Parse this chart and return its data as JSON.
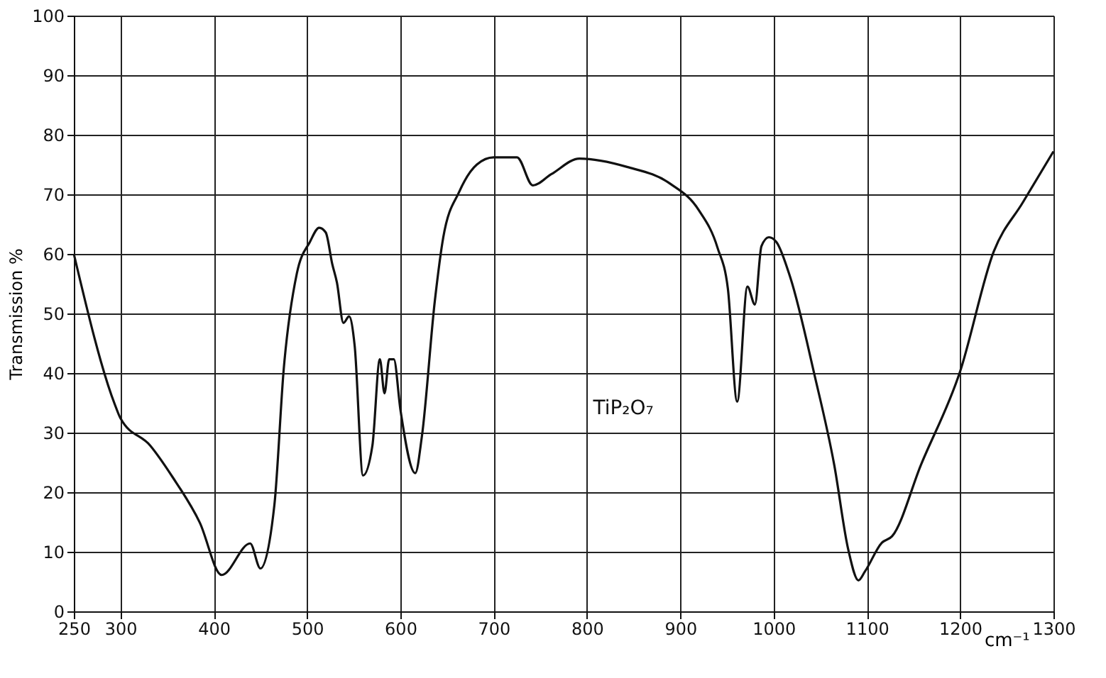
{
  "chart_data": {
    "type": "line",
    "ylabel": "Transmission %",
    "xlabel": "cm⁻¹",
    "annotations": [
      "TiP₂O₇"
    ],
    "x": [
      250,
      294,
      300,
      332,
      356,
      385,
      408.5,
      439,
      450,
      465,
      475,
      489,
      503,
      513,
      520,
      527,
      532,
      539,
      545,
      551,
      560,
      570,
      578,
      583,
      588,
      593,
      600,
      616,
      623,
      637,
      646,
      663,
      682,
      700,
      725,
      742,
      762,
      792,
      843,
      889,
      920,
      940,
      951,
      961,
      972,
      980,
      987,
      995,
      1003,
      1018,
      1044,
      1065,
      1080,
      1091,
      1098,
      1116,
      1127,
      1158,
      1200,
      1236,
      1267,
      1300
    ],
    "series": [
      {
        "color": "#111111",
        "values": [
          60,
          34.7,
          32.4,
          27.8,
          22.5,
          14.9,
          6.1,
          11.4,
          7.2,
          17.9,
          40.7,
          56.7,
          62,
          64.4,
          63.6,
          58.3,
          55.2,
          48.4,
          49.5,
          44.6,
          22.8,
          27.8,
          42.3,
          36.6,
          42.3,
          42.3,
          33.9,
          23.2,
          29.3,
          52.2,
          62.8,
          70.4,
          75,
          76.2,
          76.2,
          71.5,
          73.4,
          76,
          74.6,
          71.8,
          67.3,
          61,
          54.2,
          35.2,
          54.5,
          51.5,
          61.3,
          62.8,
          62,
          56,
          39.6,
          24.6,
          10.4,
          5.2,
          6.7,
          11.5,
          12.6,
          24.6,
          40.3,
          60.4,
          68.6,
          77.2
        ]
      }
    ],
    "xlim": [
      250,
      1300
    ],
    "xticks": [
      250,
      300,
      400,
      500,
      600,
      700,
      800,
      900,
      1000,
      1100,
      1200,
      1300
    ],
    "ylim": [
      0,
      100
    ],
    "yticks": [
      0,
      10,
      20,
      30,
      40,
      50,
      60,
      70,
      80,
      90,
      100
    ],
    "grid": true,
    "marker": "none",
    "line_style": "solid"
  }
}
